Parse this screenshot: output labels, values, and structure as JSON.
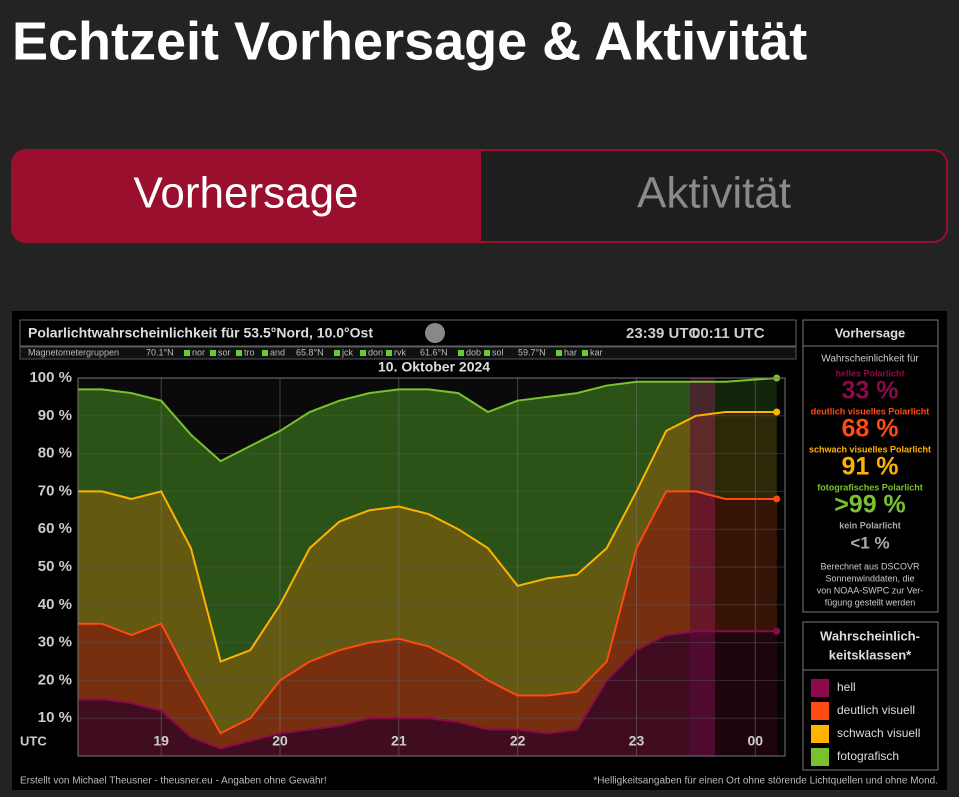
{
  "header": {
    "title": "Echtzeit Vorhersage & Aktivität"
  },
  "tabs": [
    "Vorhersage",
    "Aktivität"
  ],
  "chart_data": {
    "type": "line",
    "title": "Polarlichtwahrscheinlichkeit für 53.5°Nord, 10.0°Ost",
    "times": [
      "23:39 UTC",
      "00:11 UTC"
    ],
    "date": "10. Oktober 2024",
    "magnetometer": {
      "label": "Magnetometergruppen",
      "groups": [
        {
          "lat": "70.1°N",
          "stations": [
            "nor",
            "sor",
            "tro",
            "and"
          ]
        },
        {
          "lat": "65.8°N",
          "stations": [
            "jck",
            "don",
            "rvk"
          ]
        },
        {
          "lat": "61.6°N",
          "stations": [
            "dob",
            "sol"
          ]
        },
        {
          "lat": "59.7°N",
          "stations": [
            "har",
            "kar"
          ]
        }
      ]
    },
    "x_axis_label": "UTC",
    "x": [
      18.3,
      18.5,
      18.75,
      19,
      19.25,
      19.5,
      19.75,
      20,
      20.25,
      20.5,
      20.75,
      21,
      21.25,
      21.5,
      21.75,
      22,
      22.25,
      22.5,
      22.75,
      23,
      23.25,
      23.5,
      23.75,
      24.18
    ],
    "xlim": [
      18.3,
      24.25
    ],
    "xticks": [
      19,
      20,
      21,
      22,
      23,
      {
        "value": 24,
        "label": "00"
      }
    ],
    "ylim": [
      0,
      100
    ],
    "yticks": [
      {
        "value": 10,
        "label": "10 %"
      },
      {
        "value": 20,
        "label": "20 %"
      },
      {
        "value": 30,
        "label": "30 %"
      },
      {
        "value": 40,
        "label": "40 %"
      },
      {
        "value": 50,
        "label": "50 %"
      },
      {
        "value": 60,
        "label": "60 %"
      },
      {
        "value": 70,
        "label": "70 %"
      },
      {
        "value": 80,
        "label": "80 %"
      },
      {
        "value": 90,
        "label": "90 %"
      },
      {
        "value": 100,
        "label": "100 %"
      }
    ],
    "grid": true,
    "series": [
      {
        "name": "fotografisch",
        "color": "#7ac22c",
        "fill": "#2f5a18",
        "values": [
          97,
          97,
          96,
          94,
          85,
          78,
          82,
          86,
          91,
          94,
          96,
          97,
          97,
          96,
          91,
          94,
          95,
          96,
          98,
          99,
          99,
          99,
          99,
          100
        ]
      },
      {
        "name": "schwach visuell",
        "color": "#ffb300",
        "fill": "#6a5a10",
        "values": [
          70,
          70,
          68,
          70,
          55,
          25,
          28,
          40,
          55,
          62,
          65,
          66,
          64,
          60,
          55,
          45,
          47,
          48,
          55,
          70,
          86,
          90,
          91,
          91
        ]
      },
      {
        "name": "deutlich visuell",
        "color": "#ff4a12",
        "fill": "#7a2a10",
        "values": [
          35,
          35,
          32,
          35,
          20,
          6,
          10,
          20,
          25,
          28,
          30,
          31,
          29,
          25,
          20,
          16,
          16,
          17,
          25,
          55,
          70,
          70,
          68,
          68
        ]
      },
      {
        "name": "hell",
        "color": "#8c0a4a",
        "fill": "#3a0a22",
        "values": [
          15,
          15,
          14,
          12,
          5,
          2,
          4,
          6,
          7,
          8,
          10,
          10,
          10,
          9,
          7,
          7,
          6,
          7,
          20,
          28,
          32,
          33,
          33,
          33
        ]
      }
    ],
    "legend_title": [
      "Wahrscheinlich-",
      "keitsklassen*"
    ],
    "footer_left": "Erstellt von Michael Theusner - theusner.eu - Angaben ohne Gewähr!",
    "footer_right": "*Helligkeitsangaben für einen Ort ohne störende Lichtquellen und ohne Mond."
  },
  "sidebar": {
    "title": "Vorhersage",
    "intro": "Wahrscheinlichkeit für",
    "items": [
      {
        "label": "helles Polarlicht",
        "value": "33 %",
        "color": "#8c0a4a"
      },
      {
        "label": "deutlich visuelles Polarlicht",
        "value": "68 %",
        "color": "#ff4a12"
      },
      {
        "label": "schwach visuelles Polarlicht",
        "value": "91 %",
        "color": "#ffb300"
      },
      {
        "label": "fotografisches Polarlicht",
        "value": ">99 %",
        "color": "#7ac22c"
      },
      {
        "label": "kein Polarlicht",
        "value": "<1 %",
        "color": "#aaaaaa"
      }
    ],
    "note": [
      "Berechnet aus DSCOVR",
      "Sonnenwinddaten, die",
      "von NOAA-SWPC zur Ver-",
      "fügung gestellt werden"
    ]
  }
}
